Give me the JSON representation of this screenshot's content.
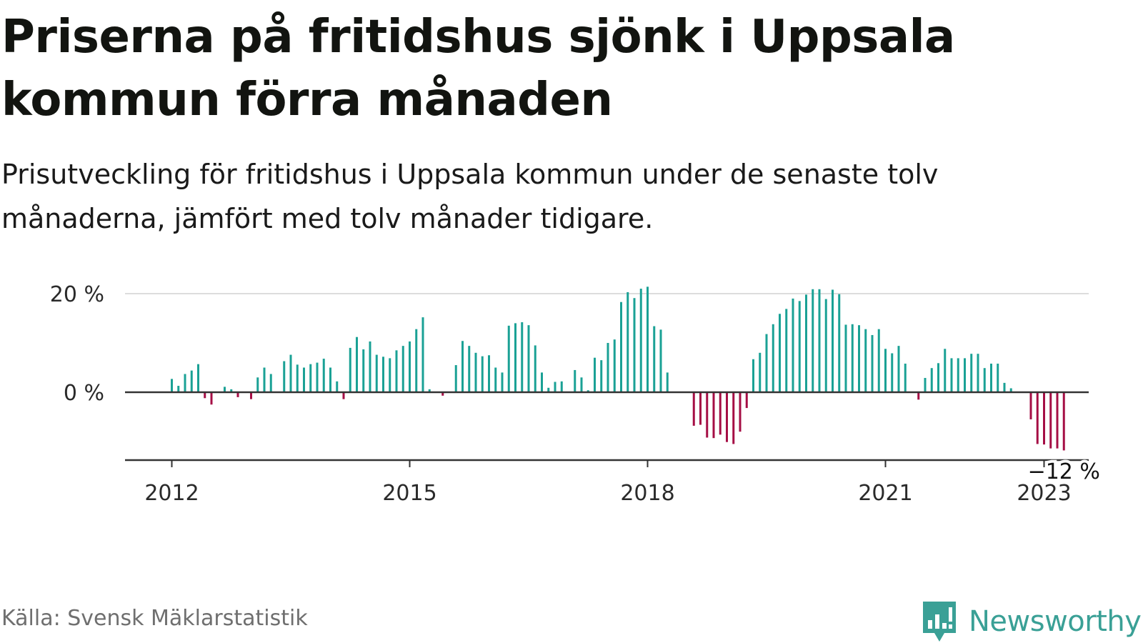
{
  "title": "Priserna på fritidshus sjönk i Uppsala kommun förra månaden",
  "subtitle": "Prisutveckling för fritidshus i Uppsala kommun under de senaste tolv månaderna, jämfört med tolv månader tidigare.",
  "source": "Källa: Svensk Mäklarstatistik",
  "brand": "Newsworthy",
  "colors": {
    "positive": "#1aa195",
    "negative": "#a50e45",
    "grid": "#dddddd",
    "axis": "#333333",
    "brand": "#3aa096"
  },
  "chart_data": {
    "type": "bar",
    "title": "Priserna på fritidshus sjönk i Uppsala kommun förra månaden",
    "x_start": "2012-01",
    "x_ticks": [
      "2012",
      "2015",
      "2018",
      "2021",
      "2023"
    ],
    "y_ticks": [
      {
        "value": 0,
        "label": "0 %"
      },
      {
        "value": 20,
        "label": "20 %"
      }
    ],
    "ylim": [
      -14,
      20
    ],
    "annotation": {
      "label": "−12 %"
    },
    "grid": true,
    "values": [
      2.7,
      1.3,
      3.7,
      4.4,
      5.7,
      -1.2,
      -2.5,
      0,
      1.1,
      0.6,
      -1.0,
      0,
      -1.4,
      3.0,
      5.0,
      3.7,
      0,
      6.3,
      7.6,
      5.6,
      5.0,
      5.7,
      6.0,
      6.8,
      5.0,
      2.2,
      -1.4,
      9.0,
      11.2,
      8.7,
      10.3,
      7.6,
      7.2,
      6.9,
      8.5,
      9.4,
      10.3,
      12.8,
      15.2,
      0.6,
      0,
      -0.7,
      0,
      5.5,
      10.4,
      9.4,
      8.0,
      7.3,
      7.5,
      5.0,
      4.0,
      13.5,
      14.0,
      14.2,
      13.6,
      9.5,
      4.0,
      0.9,
      2.1,
      2.2,
      0,
      4.5,
      3.0,
      0.4,
      7.0,
      6.5,
      10.0,
      10.7,
      18.3,
      20.3,
      19.1,
      21.0,
      21.4,
      13.4,
      12.7,
      4.0,
      0,
      0,
      0,
      -6.8,
      -6.6,
      -9.2,
      -9.3,
      -8.6,
      -10.1,
      -10.5,
      -8.0,
      -3.2,
      6.7,
      8.0,
      11.8,
      13.8,
      15.9,
      16.9,
      19.0,
      18.5,
      19.8,
      20.9,
      20.9,
      18.9,
      20.8,
      19.9,
      13.7,
      13.8,
      13.6,
      12.8,
      11.6,
      12.8,
      8.8,
      7.9,
      9.4,
      5.8,
      0,
      -1.5,
      2.9,
      4.9,
      5.9,
      8.8,
      6.9,
      6.9,
      6.9,
      7.8,
      7.8,
      4.9,
      5.8,
      5.8,
      1.9,
      0.8,
      0,
      0,
      -5.5,
      -10.5,
      -10.6,
      -11.4,
      -11.4,
      -11.8
    ]
  }
}
